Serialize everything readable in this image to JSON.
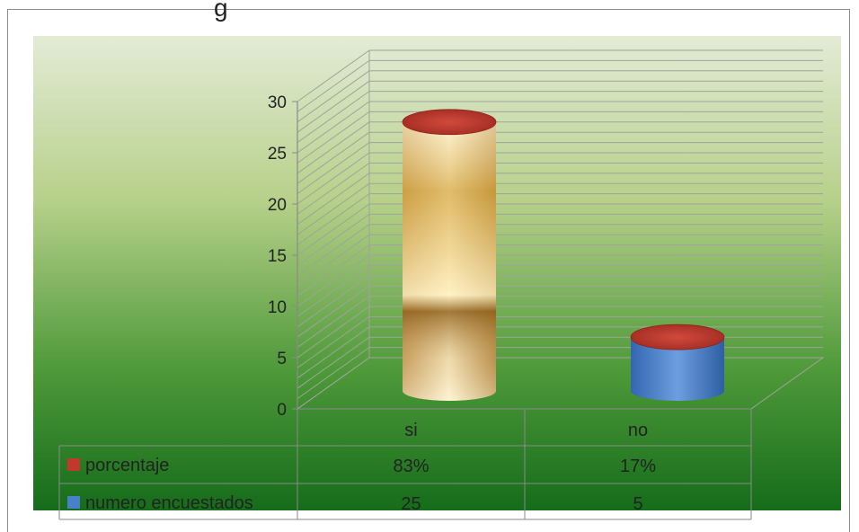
{
  "title_partial": "g",
  "chart_data": {
    "type": "bar",
    "style": "3d-cylinder-stacked",
    "categories": [
      "si",
      "no"
    ],
    "series": [
      {
        "name": "numero encuestados",
        "values": [
          25,
          5
        ],
        "color": "#4a7fc9"
      },
      {
        "name": "porcentaje",
        "values": [
          0.83,
          0.17
        ],
        "color": "#c0392b"
      }
    ],
    "data_table": {
      "rows": [
        {
          "series": "porcentaje",
          "cells": [
            "83%",
            "17%"
          ]
        },
        {
          "series": "numero encuestados",
          "cells": [
            "25",
            "5"
          ]
        }
      ]
    },
    "ylim": [
      0,
      30
    ],
    "yticks": [
      "0",
      "5",
      "10",
      "15",
      "20",
      "25",
      "30"
    ],
    "grid": true,
    "background": "green-gradient",
    "cylinder_fill_si": "gold-gradient"
  }
}
